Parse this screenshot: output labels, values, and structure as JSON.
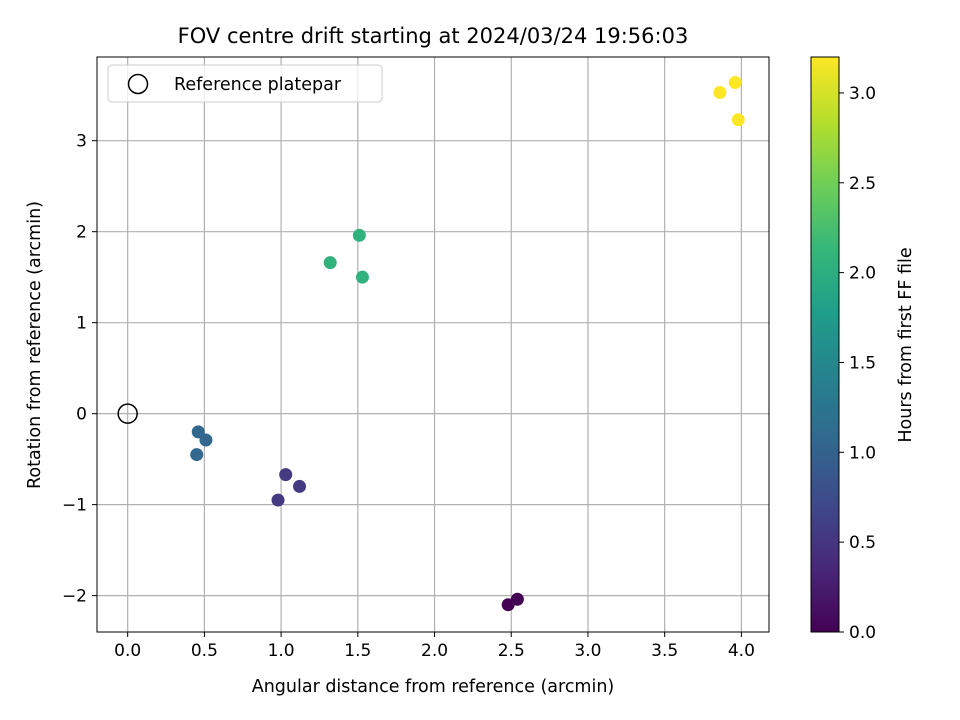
{
  "chart_data": {
    "type": "scatter",
    "title": "FOV centre drift starting at 2024/03/24 19:56:03",
    "xlabel": "Angular distance from reference (arcmin)",
    "ylabel": "Rotation from reference (arcmin)",
    "xlim": [
      -0.2,
      4.18
    ],
    "ylim": [
      -2.4,
      3.92
    ],
    "x_ticks": [
      0.0,
      0.5,
      1.0,
      1.5,
      2.0,
      2.5,
      3.0,
      3.5,
      4.0
    ],
    "x_tick_labels": [
      "0.0",
      "0.5",
      "1.0",
      "1.5",
      "2.0",
      "2.5",
      "3.0",
      "3.5",
      "4.0"
    ],
    "y_ticks": [
      -2,
      -1,
      0,
      1,
      2,
      3
    ],
    "y_tick_labels": [
      "−2",
      "−1",
      "0",
      "1",
      "2",
      "3"
    ],
    "grid": true,
    "legend": {
      "position": "top-left",
      "entries": [
        "Reference platepar"
      ]
    },
    "reference_point": {
      "x": 0.0,
      "y": 0.0,
      "label": "Reference platepar"
    },
    "series": [
      {
        "points": [
          {
            "x": 2.48,
            "y": -2.1,
            "hours": 0.0
          },
          {
            "x": 2.54,
            "y": -2.04,
            "hours": 0.0
          },
          {
            "x": 0.98,
            "y": -0.95,
            "hours": 0.55
          },
          {
            "x": 1.03,
            "y": -0.67,
            "hours": 0.55
          },
          {
            "x": 1.12,
            "y": -0.8,
            "hours": 0.55
          },
          {
            "x": 0.45,
            "y": -0.45,
            "hours": 1.05
          },
          {
            "x": 0.46,
            "y": -0.2,
            "hours": 1.05
          },
          {
            "x": 0.51,
            "y": -0.29,
            "hours": 1.05
          },
          {
            "x": 1.32,
            "y": 1.66,
            "hours": 2.05
          },
          {
            "x": 1.51,
            "y": 1.96,
            "hours": 2.05
          },
          {
            "x": 1.53,
            "y": 1.5,
            "hours": 2.05
          },
          {
            "x": 3.86,
            "y": 3.53,
            "hours": 3.2
          },
          {
            "x": 3.96,
            "y": 3.64,
            "hours": 3.2
          },
          {
            "x": 3.98,
            "y": 3.23,
            "hours": 3.2
          }
        ]
      }
    ],
    "colorbar": {
      "label": "Hours from first FF file",
      "colormap": "viridis",
      "range": [
        0.0,
        3.2
      ],
      "ticks": [
        0.0,
        0.5,
        1.0,
        1.5,
        2.0,
        2.5,
        3.0
      ],
      "tick_labels": [
        "0.0",
        "0.5",
        "1.0",
        "1.5",
        "2.0",
        "2.5",
        "3.0"
      ]
    },
    "colors": {
      "grid": "#b0b0b0",
      "axes": "#000000",
      "legend_border": "#cccccc"
    }
  }
}
